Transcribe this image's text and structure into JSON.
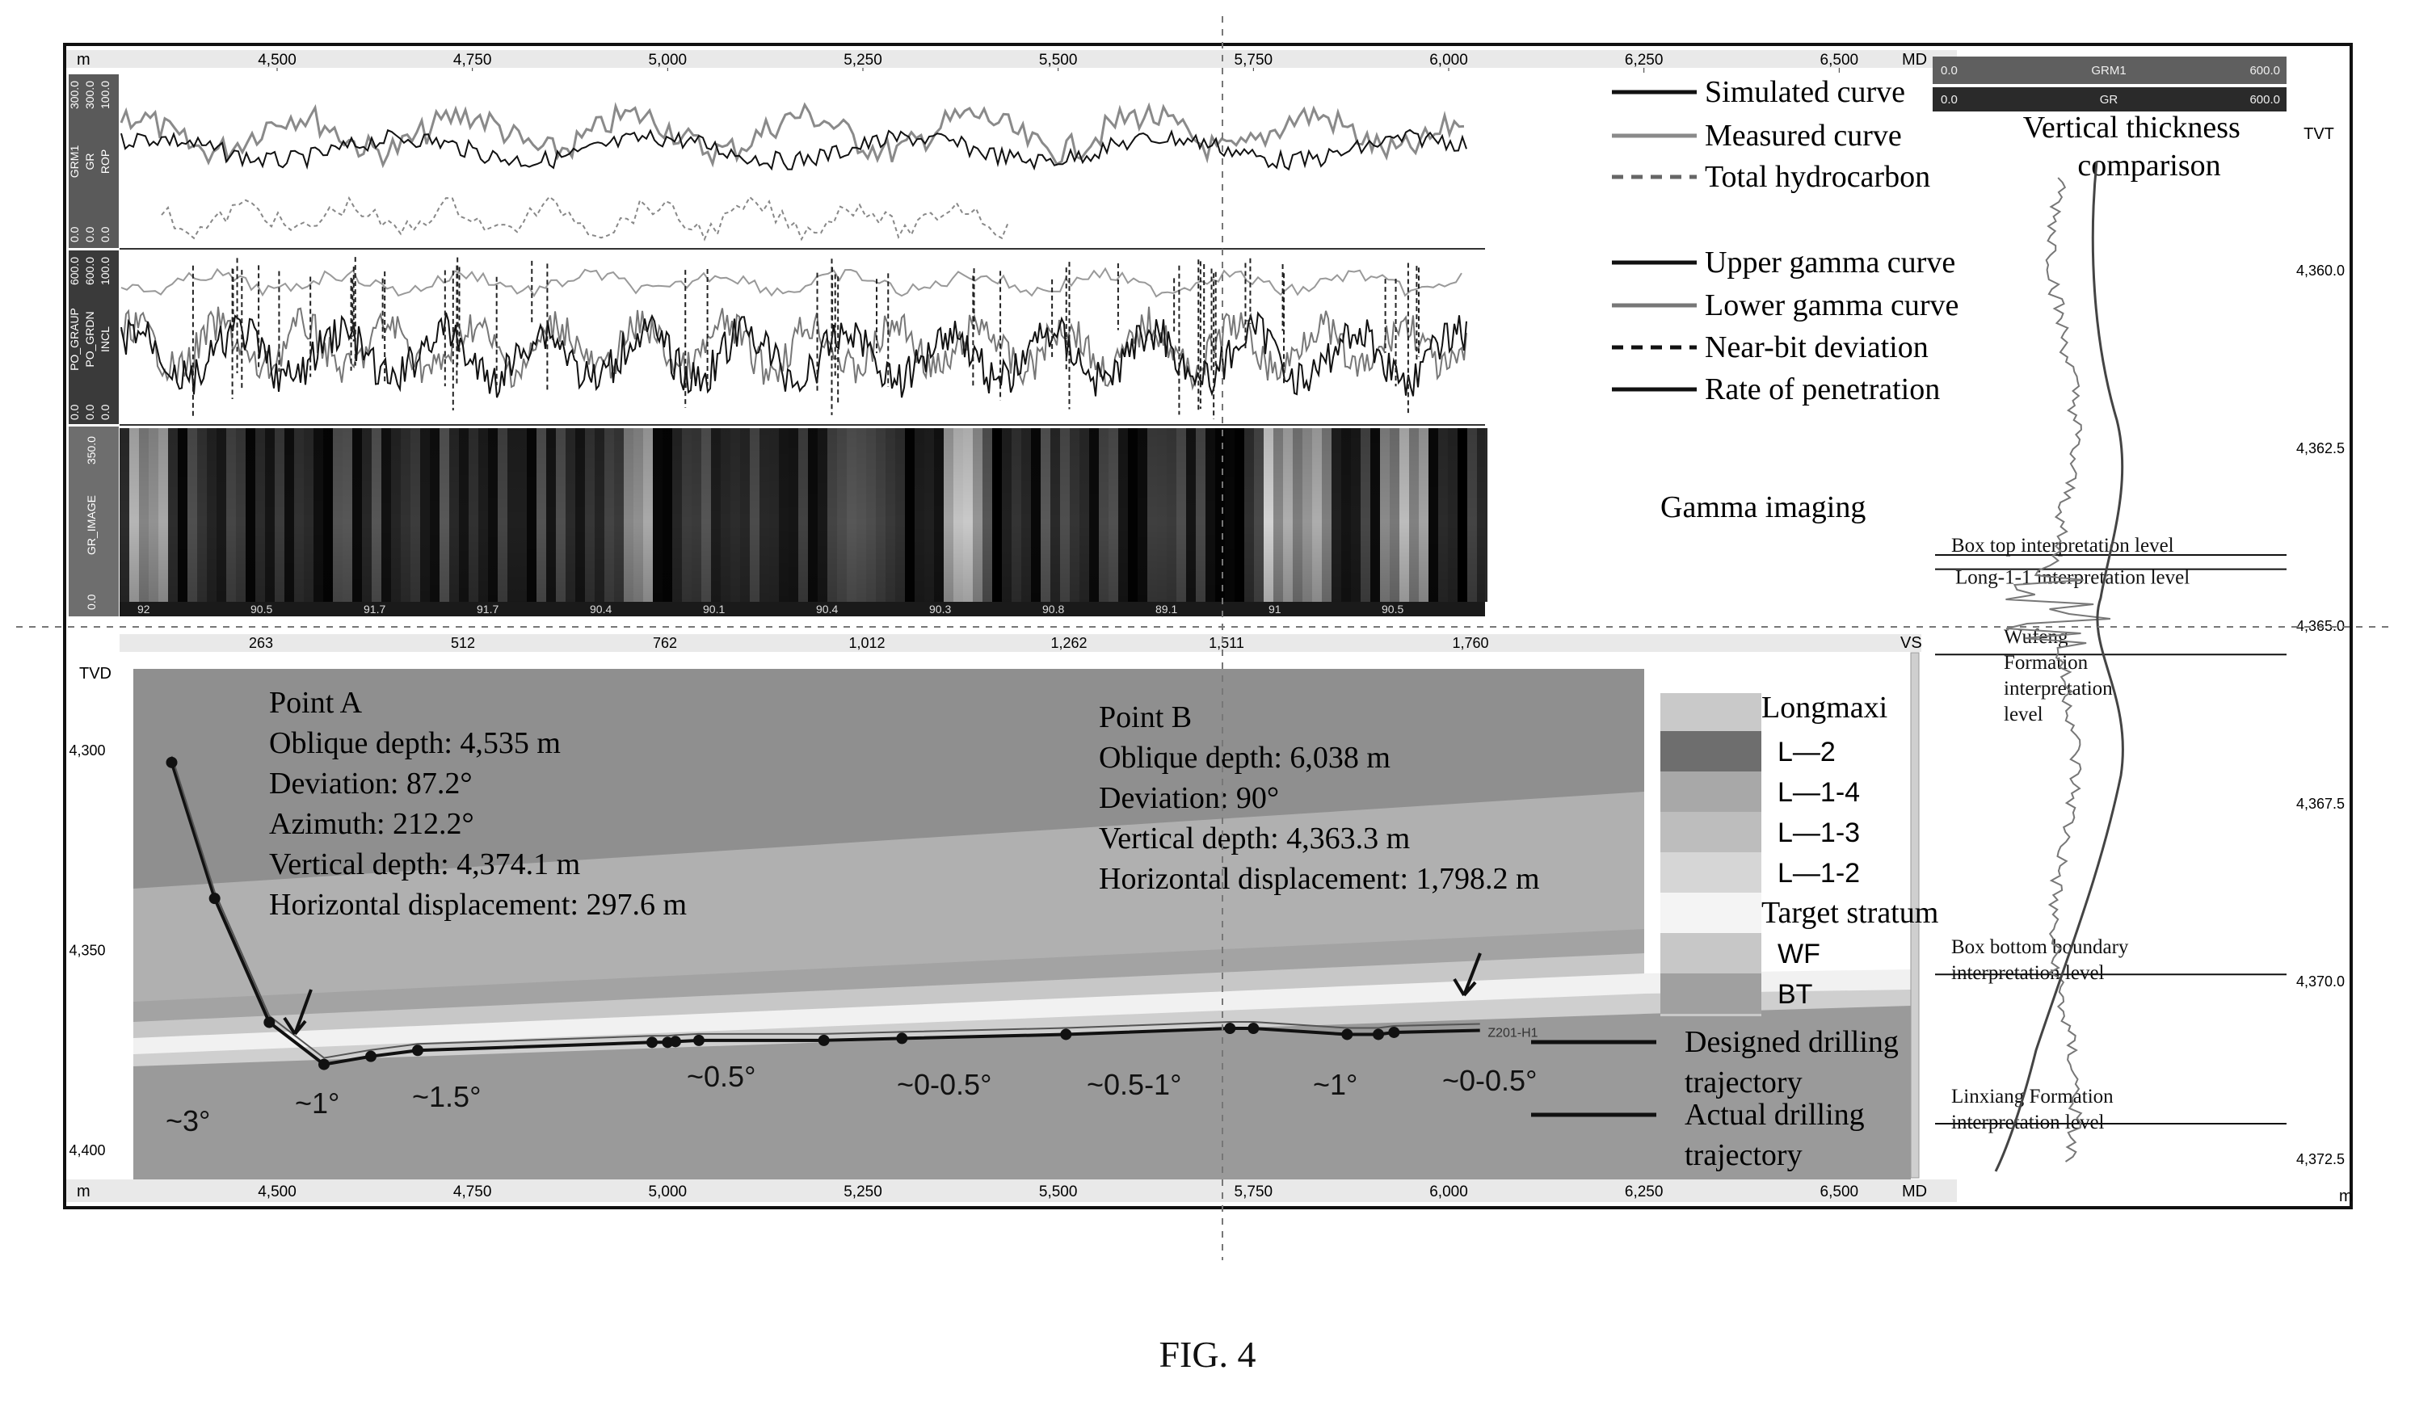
{
  "figure_caption": "FIG. 4",
  "chart_data": [
    {
      "type": "line",
      "panel": "top log tracks",
      "x_axis": {
        "unit_label": "m",
        "right_label": "MD",
        "ticks": [
          "4,500",
          "4,750",
          "5,000",
          "5,250",
          "5,500",
          "5,750",
          "6,000",
          "6,250",
          "6,500"
        ],
        "range": [
          4365,
          6620
        ]
      },
      "track_labels": [
        "0.0",
        "GRM1",
        "300.0",
        "0.0",
        "GR",
        "300.0",
        "0.0",
        "ROP",
        "100.0",
        "0.0",
        "PO_GRAUP",
        "600.0",
        "0.0",
        "PO_GRDN",
        "600.0",
        "0.0",
        "INCL",
        "100.0",
        "0.0",
        "GR_IMAGE",
        "350.0"
      ],
      "image_strip_values": [
        "92",
        "90.5",
        "91.7",
        "91.7",
        "90.4",
        "90.1",
        "90.4",
        "90.3",
        "90.8",
        "89.1",
        "91",
        "90.5"
      ],
      "legend": [
        {
          "label": "Simulated curve",
          "style": "solid",
          "color": "#111111"
        },
        {
          "label": "Measured curve",
          "style": "solid",
          "color": "#8a8a8a"
        },
        {
          "label": "Total hydrocarbon",
          "style": "dashed",
          "color": "#666666"
        },
        {
          "label": "Upper gamma curve",
          "style": "solid",
          "color": "#111111"
        },
        {
          "label": "Lower gamma curve",
          "style": "solid",
          "color": "#777777"
        },
        {
          "label": "Near-bit deviation",
          "style": "dashed",
          "color": "#111111"
        },
        {
          "label": "Rate of penetration",
          "style": "solid",
          "color": "#111111"
        }
      ],
      "annotation": "Gamma imaging"
    },
    {
      "type": "line",
      "panel": "stratigraphic section",
      "ylabel": "TVD",
      "y_ticks": [
        "4,300",
        "4,350",
        "4,400"
      ],
      "ylim": [
        4400,
        4295
      ],
      "vs_label": "VS",
      "vs_ticks": [
        "263",
        "512",
        "762",
        "1,012",
        "1,262",
        "1,511",
        "1,760"
      ],
      "x_axis": {
        "unit_label": "m",
        "right_label": "MD",
        "ticks": [
          "4,500",
          "4,750",
          "5,000",
          "5,250",
          "5,500",
          "5,750",
          "6,000",
          "6,250",
          "6,500"
        ],
        "range": [
          4365,
          6620
        ]
      },
      "series": [
        {
          "name": "Actual drilling trajectory",
          "x": [
            4365,
            4420,
            4490,
            4560,
            4620,
            4680,
            4980,
            5000,
            5010,
            5040,
            5200,
            5300,
            5510,
            5720,
            5750,
            5870,
            5910,
            5930,
            6040
          ],
          "y": [
            4303,
            4337,
            4368,
            4378.5,
            4376.5,
            4375,
            4373,
            4373,
            4372.8,
            4372.5,
            4372.5,
            4372,
            4371,
            4369.5,
            4369.5,
            4371,
            4371,
            4370.5,
            4370
          ]
        }
      ],
      "markers_x": [
        4365,
        4420,
        4490,
        4560,
        4620,
        4680,
        4980,
        5000,
        5010,
        5040,
        5200,
        5300,
        5510,
        5720,
        5750,
        5870,
        5910,
        5930
      ],
      "well_name": "Z201-H1",
      "points": [
        {
          "title": "Point A",
          "lines": [
            "Oblique depth: 4,535 m",
            "Deviation: 87.2°",
            "Azimuth: 212.2°",
            "Vertical depth: 4,374.1 m",
            "Horizontal displacement: 297.6 m"
          ]
        },
        {
          "title": "Point B",
          "lines": [
            "Oblique depth: 6,038 m",
            "Deviation: 90°",
            "Vertical depth: 4,363.3 m",
            "Horizontal displacement: 1,798.2 m"
          ]
        }
      ],
      "dip_labels": [
        "~3°",
        "~1°",
        "~1.5°",
        "~0.5°",
        "~0-0.5°",
        "~0.5-1°",
        "~1°",
        "~0-0.5°"
      ],
      "strata_legend": {
        "header": "Longmaxi",
        "items": [
          "L—2",
          "L—1-4",
          "L—1-3",
          "L—1-2",
          "Target stratum",
          "WF",
          "BT"
        ]
      },
      "trajectory_legend": [
        "Designed drilling trajectory",
        "Actual drilling trajectory"
      ]
    },
    {
      "type": "line",
      "panel": "vertical thickness comparison",
      "title": "Vertical thickness comparison",
      "ylabel": "TVT",
      "y_ticks": [
        "4,360.0",
        "4,362.5",
        "4,365.0",
        "4,367.5",
        "4,370.0",
        "4,372.5"
      ],
      "ylim": [
        4358.5,
        4372.6
      ],
      "header_ticks": [
        "0.0",
        "GRM1",
        "600.0",
        "0.0",
        "GR",
        "600.0"
      ],
      "bottom_label": "m",
      "levels": [
        {
          "label": "Box top interpretation level",
          "tvt": 4364.0
        },
        {
          "label": "Long-1-1 interpretation level",
          "tvt": 4364.2
        },
        {
          "label": "Wufeng Formation interpretation level",
          "tvt": 4365.4
        },
        {
          "label": "Box bottom boundary interpretation level",
          "tvt": 4369.9
        },
        {
          "label": "Linxiang Formation interpretation level",
          "tvt": 4372.0
        }
      ]
    }
  ]
}
